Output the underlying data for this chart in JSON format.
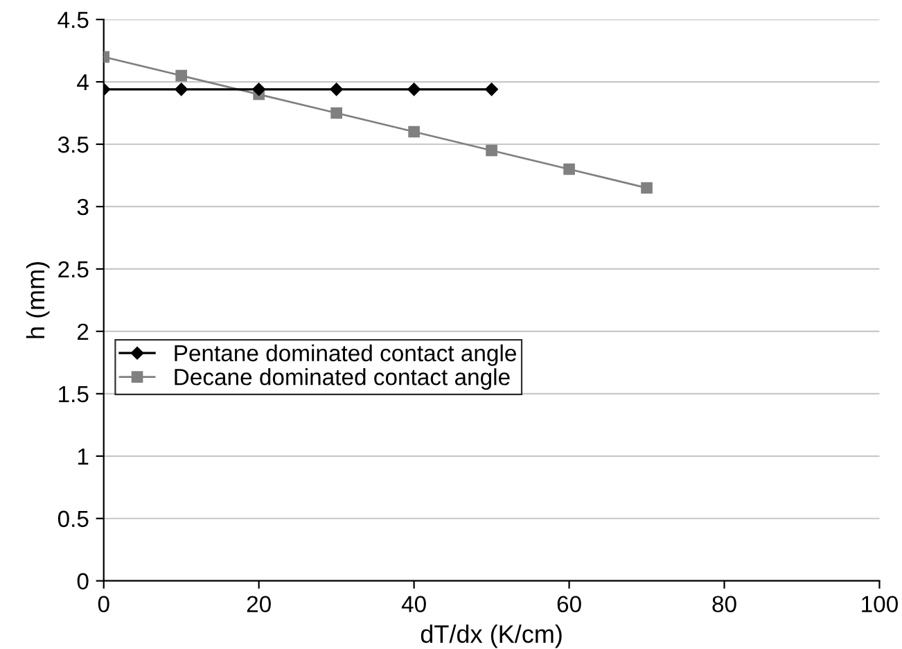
{
  "chart_data": {
    "type": "line",
    "xlabel": "dT/dx (K/cm)",
    "ylabel": "h (mm)",
    "xlim": [
      0,
      100
    ],
    "xticks": [
      0,
      20,
      40,
      60,
      80,
      100
    ],
    "ylim": [
      0,
      4.5
    ],
    "yticks": [
      0,
      0.5,
      1,
      1.5,
      2,
      2.5,
      3,
      3.5,
      4,
      4.5
    ],
    "grid": "y",
    "legend": "left",
    "series": [
      {
        "name": "Pentane dominated contact angle",
        "color": "#000000",
        "marker": "diamond",
        "x": [
          0,
          10,
          20,
          30,
          40,
          50
        ],
        "values": [
          3.94,
          3.94,
          3.94,
          3.94,
          3.94,
          3.94
        ]
      },
      {
        "name": "Decane dominated contact angle",
        "color": "#808080",
        "marker": "square",
        "x": [
          0,
          10,
          20,
          30,
          40,
          50,
          60,
          70
        ],
        "values": [
          4.2,
          4.05,
          3.9,
          3.75,
          3.6,
          3.45,
          3.3,
          3.15
        ]
      }
    ]
  }
}
